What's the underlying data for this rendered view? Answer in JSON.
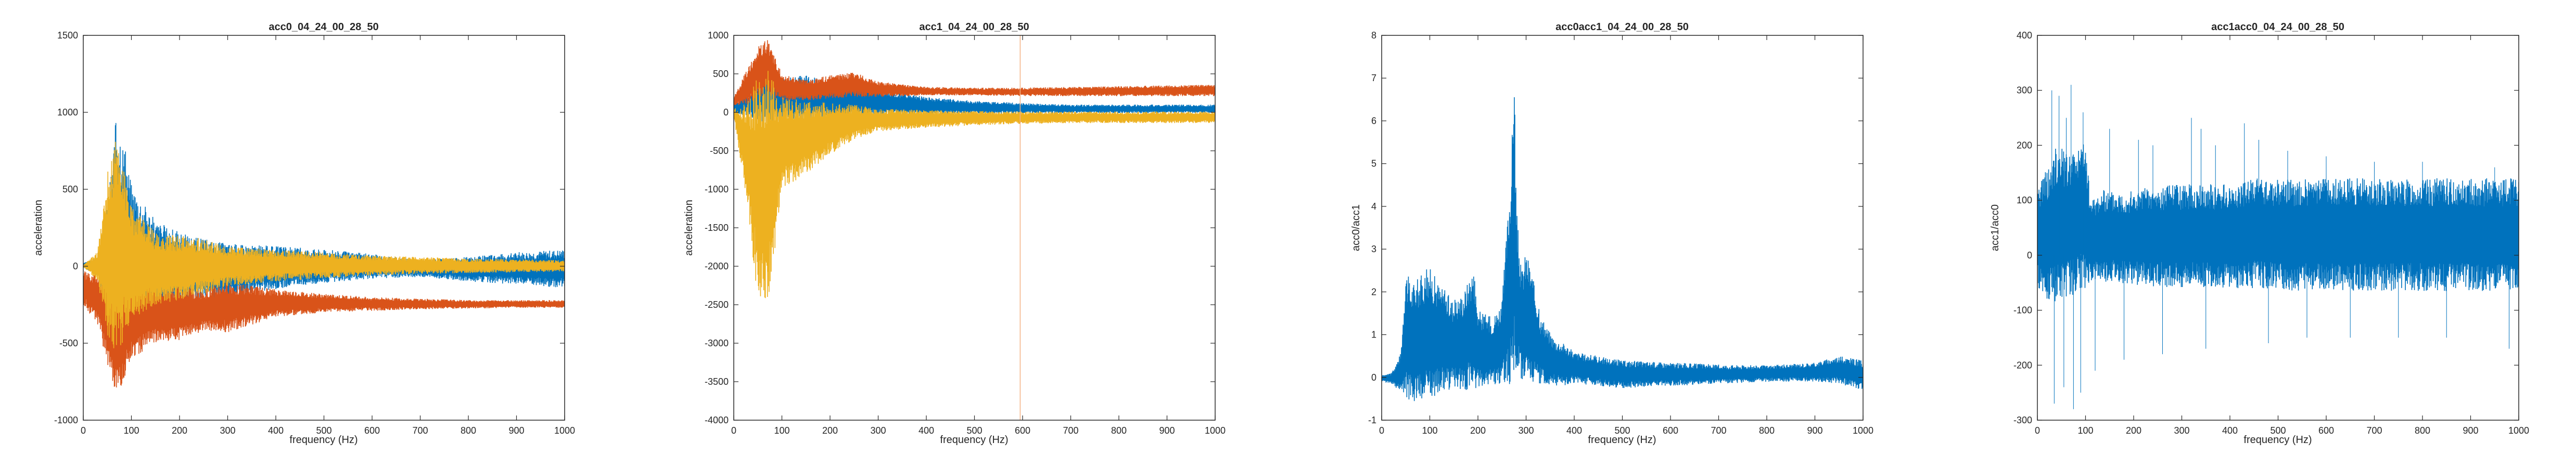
{
  "chart_data": [
    {
      "type": "line",
      "title": "acc0_04_24_00_28_50",
      "xlabel": "frequency (Hz)",
      "ylabel": "acceleration",
      "xlim": [
        0,
        1000
      ],
      "ylim": [
        -1000,
        1500
      ],
      "xticks": [
        "0",
        "100",
        "200",
        "300",
        "400",
        "500",
        "600",
        "700",
        "800",
        "900",
        "1000"
      ],
      "yticks": [
        "-1000",
        "-500",
        "0",
        "500",
        "1000",
        "1500"
      ],
      "series": [
        {
          "color": "#0072BD",
          "x": [
            0,
            30,
            50,
            70,
            100,
            150,
            200,
            250,
            300,
            400,
            500,
            600,
            700,
            800,
            900,
            1000
          ],
          "upper": [
            20,
            60,
            400,
            1030,
            550,
            300,
            220,
            180,
            150,
            130,
            110,
            80,
            40,
            60,
            90,
            110
          ],
          "lower": [
            -10,
            -60,
            -300,
            -660,
            -500,
            -330,
            -260,
            -230,
            -200,
            -150,
            -110,
            -80,
            -70,
            -100,
            -120,
            -140
          ]
        },
        {
          "color": "#D95319",
          "x": [
            0,
            30,
            50,
            70,
            100,
            150,
            200,
            250,
            300,
            400,
            500,
            600,
            700,
            800,
            900,
            1000
          ],
          "upper": [
            -30,
            -40,
            -60,
            -150,
            -80,
            -100,
            -120,
            -150,
            -100,
            -150,
            -180,
            -200,
            -210,
            -220,
            -220,
            -220
          ],
          "lower": [
            -250,
            -380,
            -650,
            -850,
            -600,
            -500,
            -480,
            -420,
            -430,
            -330,
            -300,
            -290,
            -280,
            -275,
            -270,
            -270
          ]
        },
        {
          "color": "#EDB120",
          "x": [
            0,
            30,
            50,
            70,
            100,
            150,
            200,
            250,
            300,
            400,
            500,
            600,
            700,
            800,
            900,
            1000
          ],
          "upper": [
            5,
            100,
            620,
            900,
            400,
            220,
            200,
            180,
            130,
            110,
            90,
            70,
            60,
            50,
            45,
            40
          ],
          "lower": [
            -5,
            -100,
            -450,
            -600,
            -350,
            -250,
            -230,
            -180,
            -130,
            -100,
            -80,
            -60,
            -50,
            -45,
            -40,
            -35
          ]
        }
      ]
    },
    {
      "type": "line",
      "title": "acc1_04_24_00_28_50",
      "xlabel": "frequency (Hz)",
      "ylabel": "acceleration",
      "xlim": [
        0,
        1000
      ],
      "ylim": [
        -4000,
        1000
      ],
      "xticks": [
        "0",
        "100",
        "200",
        "300",
        "400",
        "500",
        "600",
        "700",
        "800",
        "900",
        "1000"
      ],
      "yticks": [
        "-4000",
        "-3500",
        "-3000",
        "-2500",
        "-2000",
        "-1500",
        "-1000",
        "-500",
        "0",
        "500",
        "1000"
      ],
      "series": [
        {
          "color": "#0072BD",
          "x": [
            0,
            30,
            50,
            70,
            100,
            150,
            200,
            250,
            300,
            400,
            500,
            600,
            700,
            800,
            900,
            1000
          ],
          "upper": [
            120,
            250,
            400,
            650,
            450,
            480,
            400,
            400,
            300,
            200,
            150,
            120,
            100,
            100,
            100,
            100
          ],
          "lower": [
            -20,
            -50,
            -100,
            -150,
            -120,
            -100,
            -80,
            -60,
            -40,
            -30,
            -20,
            -15,
            -10,
            -10,
            -10,
            -10
          ]
        },
        {
          "color": "#D95319",
          "x": [
            0,
            30,
            50,
            70,
            100,
            150,
            200,
            250,
            300,
            400,
            500,
            600,
            700,
            800,
            900,
            1000
          ],
          "upper": [
            200,
            600,
            850,
            950,
            500,
            420,
            480,
            520,
            400,
            330,
            320,
            320,
            330,
            340,
            350,
            360
          ],
          "lower": [
            80,
            100,
            150,
            200,
            150,
            150,
            180,
            200,
            200,
            220,
            220,
            210,
            210,
            210,
            210,
            210
          ]
        },
        {
          "color": "#EDB120",
          "x": [
            0,
            30,
            50,
            70,
            100,
            150,
            200,
            250,
            300,
            400,
            500,
            600,
            700,
            800,
            900,
            1000
          ],
          "upper": [
            50,
            150,
            500,
            600,
            200,
            150,
            120,
            100,
            50,
            30,
            20,
            10,
            10,
            10,
            10,
            10
          ],
          "lower": [
            -50,
            -1300,
            -2500,
            -2600,
            -1000,
            -800,
            -550,
            -350,
            -250,
            -200,
            -170,
            -150,
            -140,
            -140,
            -140,
            -140
          ]
        }
      ],
      "vline": {
        "x": 595,
        "color": "#F4B183"
      }
    },
    {
      "type": "line",
      "title": "acc0acc1_04_24_00_28_50",
      "xlabel": "frequency (Hz)",
      "ylabel": "acc0/acc1",
      "xlim": [
        0,
        1000
      ],
      "ylim": [
        -1,
        8
      ],
      "xticks": [
        "0",
        "100",
        "200",
        "300",
        "400",
        "500",
        "600",
        "700",
        "800",
        "900",
        "1000"
      ],
      "yticks": [
        "-1",
        "0",
        "1",
        "2",
        "3",
        "4",
        "5",
        "6",
        "7",
        "8"
      ],
      "series": [
        {
          "color": "#0072BD",
          "x": [
            0,
            20,
            40,
            50,
            60,
            80,
            100,
            120,
            150,
            170,
            190,
            200,
            230,
            250,
            260,
            270,
            275,
            280,
            290,
            300,
            310,
            330,
            360,
            380,
            400,
            450,
            500,
            600,
            700,
            800,
            900,
            950,
            1000
          ],
          "upper": [
            0.05,
            0.1,
            0.6,
            2.6,
            2.2,
            2.4,
            2.6,
            2.2,
            1.8,
            2.0,
            2.6,
            1.6,
            1.4,
            1.8,
            3.5,
            5.2,
            7.8,
            4.0,
            2.5,
            3.0,
            2.6,
            1.4,
            0.9,
            0.8,
            0.6,
            0.5,
            0.4,
            0.35,
            0.3,
            0.28,
            0.35,
            0.5,
            0.4
          ],
          "lower": [
            -0.1,
            -0.15,
            -0.4,
            -0.5,
            -0.6,
            -0.6,
            -0.5,
            -0.4,
            -0.3,
            -0.3,
            -0.3,
            -0.25,
            -0.2,
            -0.2,
            -0.2,
            -0.15,
            -0.1,
            -0.15,
            -0.1,
            -0.1,
            -0.1,
            -0.15,
            -0.2,
            -0.2,
            -0.15,
            -0.2,
            -0.25,
            -0.2,
            -0.15,
            -0.1,
            -0.1,
            -0.15,
            -0.3
          ]
        }
      ]
    },
    {
      "type": "line",
      "title": "acc1acc0_04_24_00_28_50",
      "xlabel": "frequency (Hz)",
      "ylabel": "acc1/acc0",
      "xlim": [
        0,
        1000
      ],
      "ylim": [
        -300,
        400
      ],
      "xticks": [
        "0",
        "100",
        "200",
        "300",
        "400",
        "500",
        "600",
        "700",
        "800",
        "900",
        "1000"
      ],
      "yticks": [
        "-300",
        "-200",
        "-100",
        "0",
        "100",
        "200",
        "300",
        "400"
      ],
      "series": [
        {
          "color": "#0072BD",
          "x": [
            0,
            20,
            40,
            60,
            80,
            100,
            110,
            130,
            200,
            300,
            400,
            450,
            500,
            600,
            700,
            800,
            900,
            1000
          ],
          "upper": [
            130,
            160,
            200,
            190,
            200,
            210,
            100,
            120,
            120,
            130,
            130,
            140,
            140,
            140,
            140,
            140,
            140,
            140
          ],
          "lower": [
            -60,
            -80,
            -90,
            -80,
            -70,
            -60,
            -50,
            -50,
            -55,
            -60,
            -60,
            -60,
            -65,
            -65,
            -65,
            -65,
            -65,
            -65
          ]
        }
      ],
      "spikes": [
        [
          30,
          300
        ],
        [
          45,
          290
        ],
        [
          60,
          250
        ],
        [
          70,
          310
        ],
        [
          95,
          260
        ],
        [
          150,
          230
        ],
        [
          210,
          210
        ],
        [
          240,
          200
        ],
        [
          320,
          250
        ],
        [
          340,
          230
        ],
        [
          370,
          200
        ],
        [
          430,
          240
        ],
        [
          460,
          210
        ],
        [
          520,
          190
        ],
        [
          600,
          180
        ],
        [
          700,
          170
        ],
        [
          800,
          170
        ],
        [
          950,
          160
        ],
        [
          35,
          -270
        ],
        [
          55,
          -240
        ],
        [
          75,
          -280
        ],
        [
          90,
          -250
        ],
        [
          120,
          -210
        ],
        [
          180,
          -190
        ],
        [
          260,
          -180
        ],
        [
          350,
          -170
        ],
        [
          480,
          -160
        ],
        [
          560,
          -150
        ],
        [
          650,
          -150
        ],
        [
          750,
          -150
        ],
        [
          850,
          -150
        ],
        [
          980,
          -170
        ]
      ]
    }
  ]
}
